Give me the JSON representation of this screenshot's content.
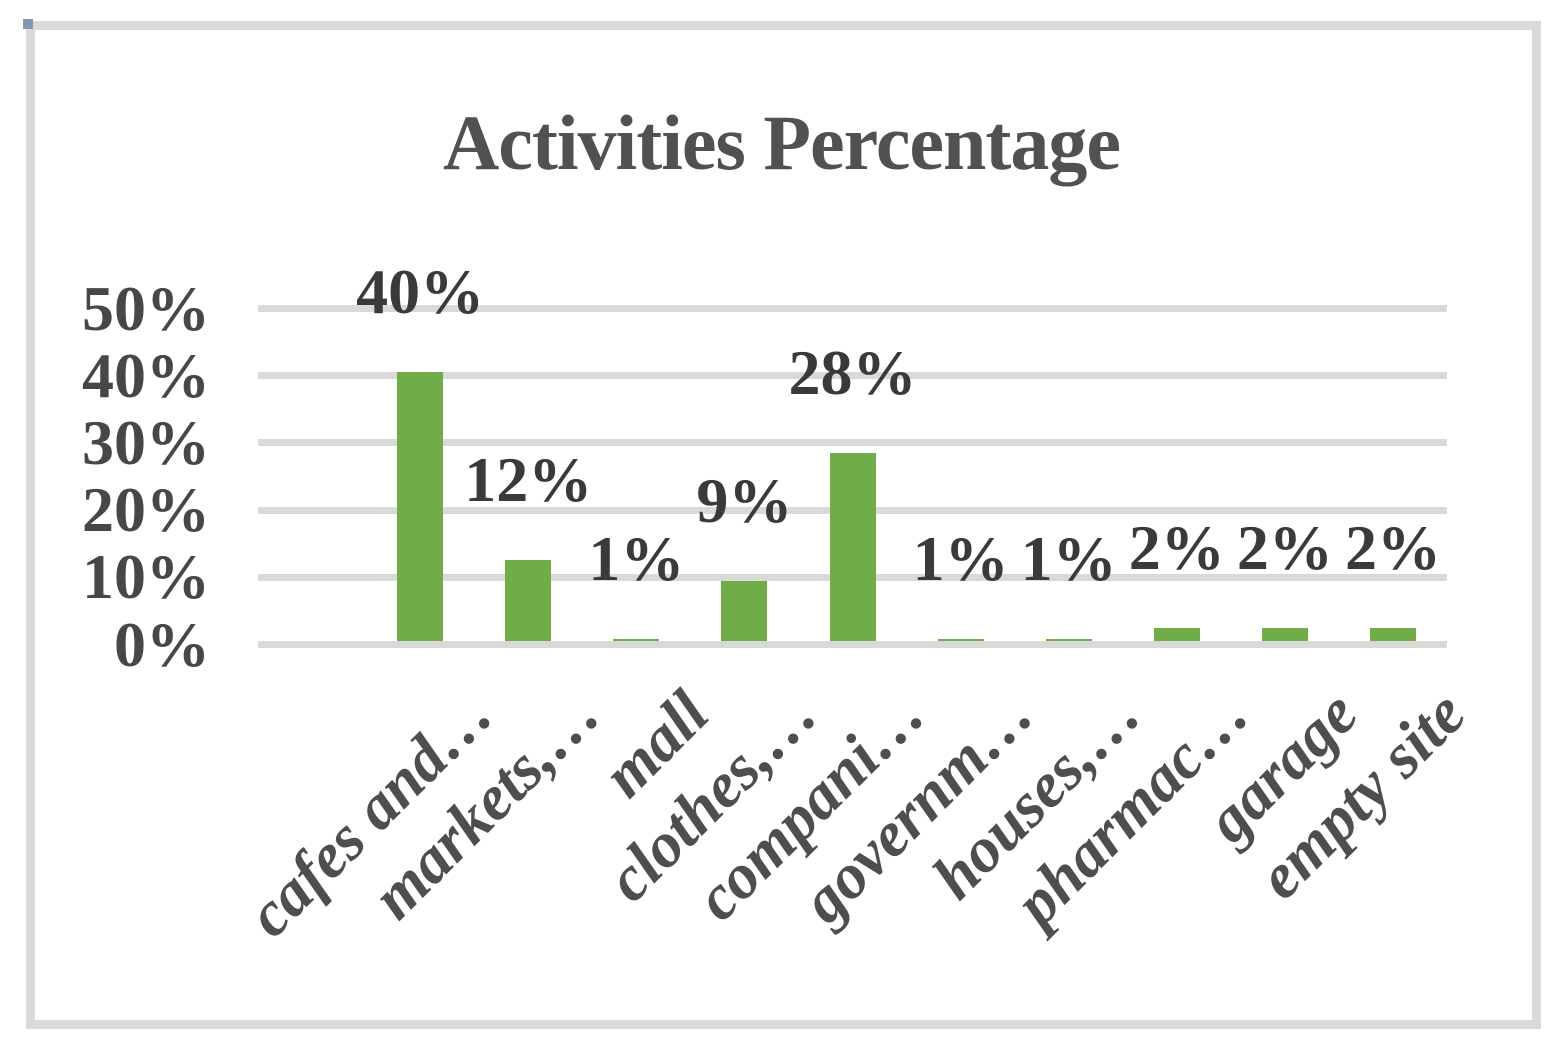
{
  "selection": {
    "frame_color": "#D9D9D9",
    "handle_color": "#8497B0"
  },
  "chart_data": {
    "type": "bar",
    "title": "Activities Percentage",
    "categories": [
      "cafes and…",
      "markets,…",
      "mall",
      "clothes,…",
      "compani…",
      "governm…",
      "houses,…",
      "pharmac…",
      "garage",
      "empty site"
    ],
    "values": [
      40,
      12,
      1,
      9,
      28,
      1,
      1,
      2,
      2,
      2
    ],
    "data_labels": [
      "40%",
      "12%",
      "1%",
      "9%",
      "28%",
      "1%",
      "1%",
      "2%",
      "2%",
      "2%"
    ],
    "y_axis": {
      "ticks_top_to_bottom": [
        "50%",
        "40%",
        "30%",
        "20%",
        "10%",
        "0%"
      ],
      "min": 0,
      "max": 50,
      "step": 10,
      "unit": "%"
    },
    "leading_blank_category": true,
    "grid": "horizontal",
    "legend": "none",
    "bar_color": "#70AD47",
    "gridline_color": "#D9D9D9",
    "title_color": "#515151",
    "label_color": "#3a3a3a",
    "axis_text_color": "#474747"
  }
}
